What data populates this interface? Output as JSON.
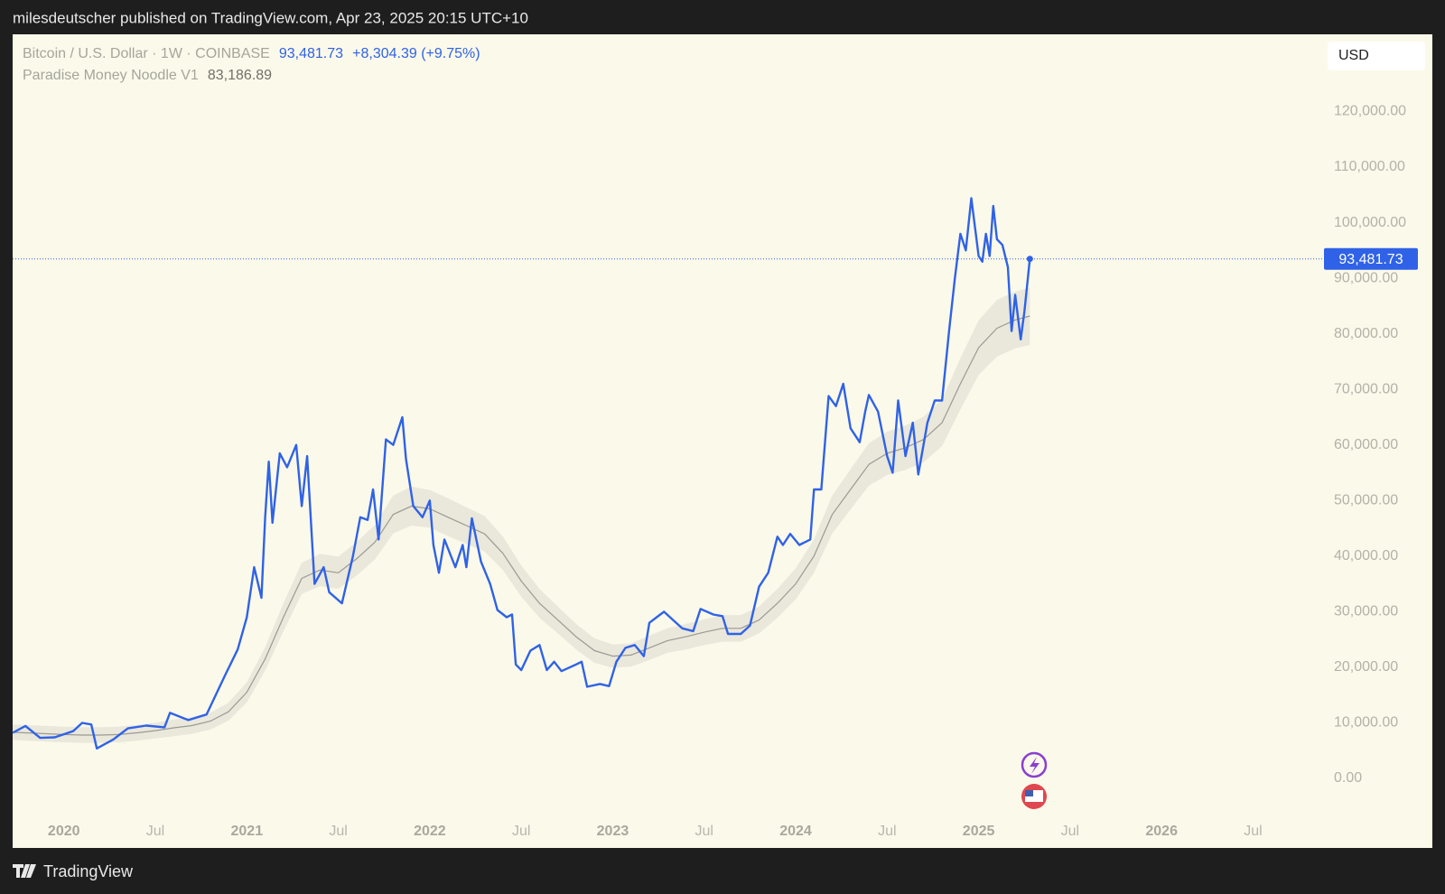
{
  "header": {
    "text": "milesdeutscher published on TradingView.com, Apr 23, 2025 20:15 UTC+10"
  },
  "footer": {
    "brand": "TradingView"
  },
  "chart_data": {
    "type": "line",
    "currency": "USD",
    "grid": false,
    "xlim": [
      2019.72,
      2027.48
    ],
    "ylim": [
      -12510,
      133890
    ],
    "xticks": [
      {
        "value": 2020,
        "label": "2020"
      },
      {
        "value": 2020.5,
        "label": "Jul"
      },
      {
        "value": 2021,
        "label": "2021"
      },
      {
        "value": 2021.5,
        "label": "Jul"
      },
      {
        "value": 2022,
        "label": "2022"
      },
      {
        "value": 2022.5,
        "label": "Jul"
      },
      {
        "value": 2023,
        "label": "2023"
      },
      {
        "value": 2023.5,
        "label": "Jul"
      },
      {
        "value": 2024,
        "label": "2024"
      },
      {
        "value": 2024.5,
        "label": "Jul"
      },
      {
        "value": 2025,
        "label": "2025"
      },
      {
        "value": 2025.5,
        "label": "Jul"
      },
      {
        "value": 2026,
        "label": "2026"
      },
      {
        "value": 2026.5,
        "label": "Jul"
      }
    ],
    "yticks": [
      {
        "value": 0,
        "label": "0.00"
      },
      {
        "value": 10000,
        "label": "10,000.00"
      },
      {
        "value": 20000,
        "label": "20,000.00"
      },
      {
        "value": 30000,
        "label": "30,000.00"
      },
      {
        "value": 40000,
        "label": "40,000.00"
      },
      {
        "value": 50000,
        "label": "50,000.00"
      },
      {
        "value": 60000,
        "label": "60,000.00"
      },
      {
        "value": 70000,
        "label": "70,000.00"
      },
      {
        "value": 80000,
        "label": "80,000.00"
      },
      {
        "value": 90000,
        "label": "90,000.00"
      },
      {
        "value": 100000,
        "label": "100,000.00"
      },
      {
        "value": 110000,
        "label": "110,000.00"
      },
      {
        "value": 120000,
        "label": "120,000.00"
      }
    ],
    "series": [
      {
        "name": "Bitcoin / U.S. Dollar · 1W · COINBASE",
        "color": "#2f62e6",
        "last_label": "93,481.73",
        "change": "+8,304.39 (+9.75%)",
        "x": [
          2019.72,
          2019.79,
          2019.87,
          2019.95,
          2020.05,
          2020.1,
          2020.15,
          2020.18,
          2020.27,
          2020.35,
          2020.45,
          2020.55,
          2020.58,
          2020.68,
          2020.78,
          2020.88,
          2020.95,
          2021.0,
          2021.04,
          2021.08,
          2021.1,
          2021.12,
          2021.14,
          2021.18,
          2021.22,
          2021.27,
          2021.3,
          2021.33,
          2021.37,
          2021.42,
          2021.45,
          2021.52,
          2021.58,
          2021.62,
          2021.66,
          2021.69,
          2021.72,
          2021.76,
          2021.8,
          2021.85,
          2021.87,
          2021.91,
          2021.96,
          2022.0,
          2022.02,
          2022.05,
          2022.08,
          2022.14,
          2022.18,
          2022.2,
          2022.23,
          2022.28,
          2022.33,
          2022.37,
          2022.42,
          2022.45,
          2022.47,
          2022.5,
          2022.55,
          2022.6,
          2022.64,
          2022.68,
          2022.72,
          2022.8,
          2022.83,
          2022.86,
          2022.93,
          2022.98,
          2023.02,
          2023.07,
          2023.12,
          2023.17,
          2023.2,
          2023.26,
          2023.28,
          2023.33,
          2023.38,
          2023.44,
          2023.48,
          2023.55,
          2023.6,
          2023.63,
          2023.7,
          2023.75,
          2023.8,
          2023.85,
          2023.9,
          2023.93,
          2023.97,
          2024.02,
          2024.08,
          2024.1,
          2024.14,
          2024.18,
          2024.22,
          2024.26,
          2024.3,
          2024.35,
          2024.38,
          2024.4,
          2024.45,
          2024.5,
          2024.53,
          2024.56,
          2024.6,
          2024.64,
          2024.67,
          2024.72,
          2024.76,
          2024.8,
          2024.84,
          2024.87,
          2024.9,
          2024.93,
          2024.96,
          2025.0,
          2025.02,
          2025.04,
          2025.06,
          2025.08,
          2025.1,
          2025.13,
          2025.16,
          2025.18,
          2025.2,
          2025.23,
          2025.25,
          2025.28
        ],
        "values": [
          8200,
          9450,
          7300,
          7400,
          8500,
          10000,
          9700,
          5400,
          7000,
          9000,
          9500,
          9200,
          11800,
          10500,
          11500,
          18500,
          23200,
          29000,
          38000,
          32500,
          47000,
          57000,
          46000,
          58500,
          56000,
          60000,
          49000,
          58000,
          35000,
          38000,
          33500,
          31500,
          40000,
          47000,
          46500,
          52000,
          43000,
          61000,
          60000,
          65000,
          57500,
          49000,
          47000,
          50000,
          42000,
          37000,
          43000,
          38000,
          42000,
          38000,
          46800,
          39000,
          35000,
          30300,
          29000,
          29500,
          20500,
          19500,
          23000,
          24000,
          19500,
          21000,
          19300,
          20500,
          21000,
          16500,
          17000,
          16600,
          21000,
          23500,
          24000,
          22000,
          28000,
          29500,
          30000,
          28500,
          27000,
          26500,
          30500,
          29500,
          29200,
          26000,
          26000,
          27500,
          34500,
          37000,
          43500,
          42000,
          44000,
          42000,
          43000,
          52000,
          52000,
          68800,
          67000,
          71000,
          63000,
          60500,
          66000,
          69000,
          66000,
          58000,
          55000,
          68000,
          58000,
          64000,
          54700,
          64000,
          68000,
          68000,
          81000,
          90000,
          98000,
          95000,
          104400,
          94000,
          93000,
          98000,
          94000,
          103000,
          97000,
          96000,
          92000,
          80500,
          87000,
          79000,
          84000,
          93481.73
        ]
      },
      {
        "name": "Paradise Money Noodle V1",
        "color": "#9a9a94",
        "band_color": "#e6e4d8",
        "last_label": "83,186.89",
        "x": [
          2019.72,
          2020.0,
          2020.1,
          2020.2,
          2020.3,
          2020.4,
          2020.5,
          2020.6,
          2020.7,
          2020.8,
          2020.9,
          2021.0,
          2021.1,
          2021.2,
          2021.3,
          2021.4,
          2021.5,
          2021.6,
          2021.7,
          2021.8,
          2021.9,
          2022.0,
          2022.1,
          2022.2,
          2022.3,
          2022.4,
          2022.5,
          2022.6,
          2022.7,
          2022.8,
          2022.9,
          2023.0,
          2023.1,
          2023.2,
          2023.3,
          2023.4,
          2023.5,
          2023.6,
          2023.7,
          2023.8,
          2023.9,
          2024.0,
          2024.1,
          2024.2,
          2024.3,
          2024.4,
          2024.5,
          2024.6,
          2024.7,
          2024.8,
          2024.9,
          2025.0,
          2025.1,
          2025.2,
          2025.28
        ],
        "values": [
          8300,
          7900,
          7800,
          7800,
          7900,
          8200,
          8600,
          9100,
          9500,
          10300,
          12000,
          15500,
          21500,
          29000,
          36000,
          37500,
          37000,
          39500,
          42500,
          47500,
          49000,
          48500,
          47000,
          45500,
          44000,
          40500,
          35500,
          31500,
          28500,
          25500,
          23000,
          22000,
          22200,
          23500,
          24800,
          25500,
          26300,
          27000,
          27000,
          28500,
          31500,
          35000,
          40000,
          47500,
          52000,
          56500,
          58500,
          59500,
          61000,
          64000,
          71000,
          77500,
          81000,
          82500,
          83186.89
        ],
        "upper": [
          9700,
          9300,
          9200,
          9200,
          9300,
          9600,
          10000,
          10600,
          11000,
          11800,
          13600,
          17300,
          23600,
          31500,
          38800,
          40400,
          39900,
          42500,
          45600,
          50900,
          52500,
          51900,
          50400,
          48800,
          47200,
          43500,
          38300,
          34100,
          30900,
          27800,
          25200,
          24100,
          24300,
          25700,
          27000,
          27800,
          28600,
          29400,
          29400,
          30900,
          34100,
          37800,
          43000,
          50900,
          55600,
          60300,
          62400,
          63500,
          65100,
          68200,
          75600,
          82400,
          86100,
          87600,
          88300
        ],
        "lower": [
          6900,
          6500,
          6400,
          6400,
          6500,
          6800,
          7200,
          7600,
          8000,
          8800,
          10400,
          13700,
          19400,
          26500,
          33200,
          34600,
          34100,
          36500,
          39400,
          44100,
          45500,
          45100,
          43600,
          42200,
          40800,
          37500,
          32700,
          28900,
          26100,
          23200,
          20800,
          19900,
          20100,
          21300,
          22600,
          23200,
          24000,
          24600,
          24600,
          26100,
          28900,
          32200,
          37000,
          44100,
          48400,
          52700,
          54600,
          55500,
          56900,
          59800,
          66400,
          72600,
          75900,
          77400,
          78000
        ]
      }
    ]
  }
}
